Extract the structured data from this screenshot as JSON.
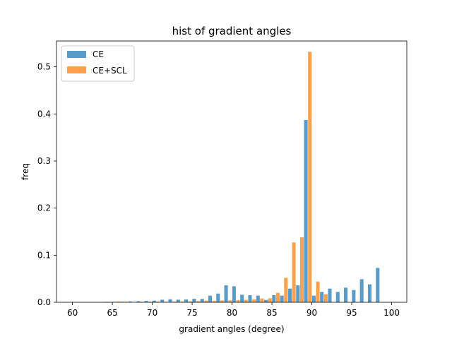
{
  "chart_data": {
    "type": "bar",
    "title": "hist of gradient angles",
    "xlabel": "gradient angles (degree)",
    "ylabel": "freq",
    "xlim": [
      58.0,
      101.9
    ],
    "ylim": [
      0.0,
      0.555
    ],
    "xticks": [
      60,
      65,
      70,
      75,
      80,
      85,
      90,
      95,
      100
    ],
    "yticks": [
      0.0,
      0.1,
      0.2,
      0.3,
      0.4,
      0.5
    ],
    "legend_position": "upper left",
    "bin_start": 60,
    "bin_width": 1,
    "series": [
      {
        "name": "CE",
        "color": "#5b9bc8",
        "values": [
          0.0003,
          0.0003,
          0.0004,
          0.0007,
          0.0009,
          0.001,
          0.0012,
          0.0018,
          0.0022,
          0.0028,
          0.0035,
          0.0055,
          0.0063,
          0.0055,
          0.006,
          0.0075,
          0.007,
          0.014,
          0.0185,
          0.036,
          0.034,
          0.016,
          0.015,
          0.014,
          0.005,
          0.015,
          0.014,
          0.029,
          0.036,
          0.387,
          0.014,
          0.022,
          0.029,
          0.022,
          0.031,
          0.026,
          0.049,
          0.038,
          0.073
        ]
      },
      {
        "name": "CE+SCL",
        "color": "#ffa04d",
        "values": [
          0.0002,
          0.0002,
          0.0003,
          0.0005,
          0.0009,
          0.0015,
          0.0012,
          0.0006,
          0.0008,
          0.0012,
          0.0015,
          0.0012,
          0.0015,
          0.0018,
          0.002,
          0.0025,
          0.0035,
          0.003,
          0.0038,
          0.004,
          0.0045,
          0.005,
          0.006,
          0.008,
          0.0085,
          0.02,
          0.052,
          0.127,
          0.138,
          0.532,
          0.044,
          0.017,
          0.0,
          0.0,
          0.0,
          0.0,
          0.0,
          0.0,
          0.0
        ]
      }
    ]
  }
}
